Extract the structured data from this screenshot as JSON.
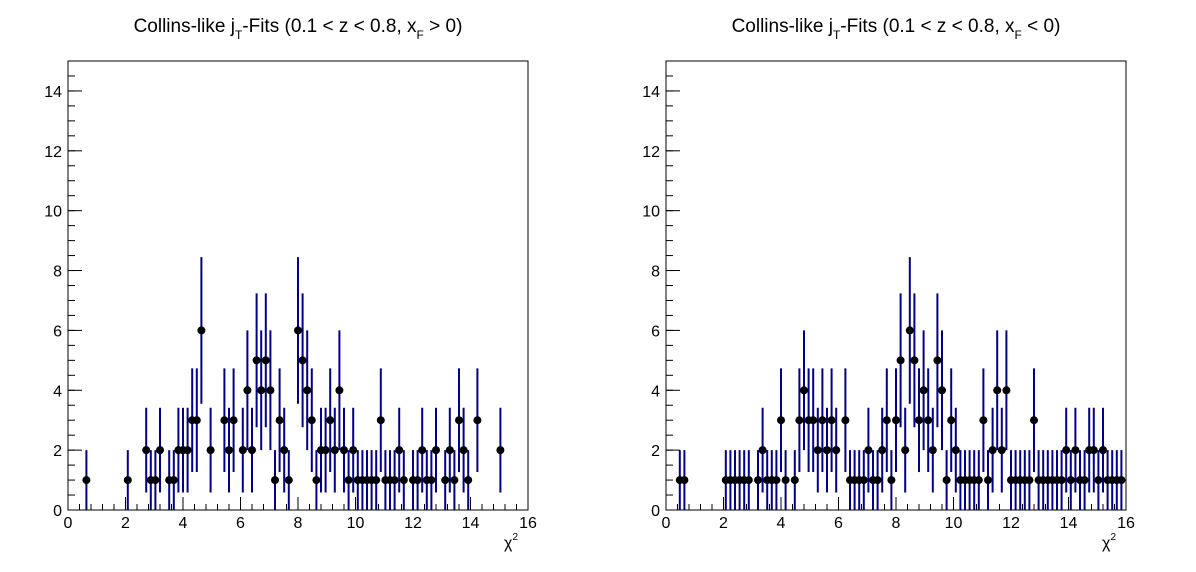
{
  "chart_data": [
    {
      "type": "scatter",
      "title_prefix": "Collins-like j",
      "title_sub1": "T",
      "title_mid": "-Fits (0.1 < z < 0.8, x",
      "title_sub2": "F",
      "title_suffix": " > 0)",
      "xlabel_base": "χ",
      "xlabel_sup": "2",
      "xlim": [
        0,
        16
      ],
      "ylim": [
        0,
        15
      ],
      "xticks": [
        0,
        2,
        4,
        6,
        8,
        10,
        12,
        14,
        16
      ],
      "yticks": [
        0,
        2,
        4,
        6,
        8,
        10,
        12,
        14
      ],
      "error_bars": "sqrt(N)",
      "x": [
        0.64,
        2.08,
        2.72,
        2.88,
        3.04,
        3.2,
        3.52,
        3.68,
        3.84,
        4.0,
        4.16,
        4.32,
        4.48,
        4.64,
        4.96,
        5.44,
        5.6,
        5.76,
        6.08,
        6.24,
        6.4,
        6.56,
        6.72,
        6.88,
        7.04,
        7.2,
        7.36,
        7.52,
        7.68,
        8.0,
        8.16,
        8.32,
        8.48,
        8.64,
        8.8,
        8.96,
        9.12,
        9.28,
        9.44,
        9.6,
        9.76,
        9.92,
        10.08,
        10.24,
        10.4,
        10.56,
        10.72,
        10.88,
        11.04,
        11.2,
        11.36,
        11.52,
        11.68,
        12.0,
        12.16,
        12.32,
        12.48,
        12.64,
        12.8,
        13.12,
        13.28,
        13.44,
        13.6,
        13.76,
        13.92,
        14.24,
        15.04
      ],
      "y": [
        1,
        1,
        2,
        1,
        1,
        2,
        1,
        1,
        2,
        2,
        2,
        3,
        3,
        6,
        2,
        3,
        2,
        3,
        2,
        4,
        2,
        5,
        4,
        5,
        4,
        1,
        3,
        2,
        1,
        6,
        5,
        4,
        3,
        1,
        2,
        2,
        3,
        2,
        4,
        2,
        1,
        2,
        1,
        1,
        1,
        1,
        1,
        3,
        1,
        1,
        1,
        2,
        1,
        1,
        1,
        2,
        1,
        1,
        2,
        1,
        2,
        1,
        3,
        2,
        1,
        3,
        2
      ]
    },
    {
      "type": "scatter",
      "title_prefix": "Collins-like j",
      "title_sub1": "T",
      "title_mid": "-Fits (0.1 < z < 0.8, x",
      "title_sub2": "F",
      "title_suffix": " < 0)",
      "xlabel_base": "χ",
      "xlabel_sup": "2",
      "xlim": [
        0,
        16
      ],
      "ylim": [
        0,
        15
      ],
      "xticks": [
        0,
        2,
        4,
        6,
        8,
        10,
        12,
        14,
        16
      ],
      "yticks": [
        0,
        2,
        4,
        6,
        8,
        10,
        12,
        14
      ],
      "error_bars": "sqrt(N)",
      "x": [
        0.48,
        0.64,
        2.08,
        2.24,
        2.4,
        2.56,
        2.72,
        2.88,
        3.2,
        3.36,
        3.52,
        3.68,
        3.84,
        4.0,
        4.16,
        4.48,
        4.64,
        4.8,
        4.96,
        5.12,
        5.28,
        5.44,
        5.6,
        5.76,
        5.92,
        6.24,
        6.4,
        6.56,
        6.72,
        6.88,
        7.04,
        7.2,
        7.36,
        7.52,
        7.68,
        7.84,
        8.0,
        8.16,
        8.32,
        8.48,
        8.64,
        8.8,
        8.96,
        9.12,
        9.28,
        9.44,
        9.6,
        9.76,
        9.92,
        10.08,
        10.24,
        10.4,
        10.56,
        10.72,
        10.88,
        11.04,
        11.2,
        11.36,
        11.52,
        11.68,
        11.84,
        12.0,
        12.16,
        12.32,
        12.48,
        12.64,
        12.8,
        12.96,
        13.12,
        13.28,
        13.44,
        13.6,
        13.76,
        13.92,
        14.08,
        14.24,
        14.4,
        14.56,
        14.72,
        14.88,
        15.04,
        15.2,
        15.36,
        15.52,
        15.68,
        15.84
      ],
      "y": [
        1,
        1,
        1,
        1,
        1,
        1,
        1,
        1,
        1,
        2,
        1,
        1,
        1,
        3,
        1,
        1,
        3,
        4,
        3,
        3,
        2,
        3,
        2,
        3,
        2,
        3,
        1,
        1,
        1,
        1,
        2,
        1,
        1,
        2,
        3,
        1,
        3,
        5,
        2,
        6,
        5,
        3,
        4,
        3,
        2,
        5,
        4,
        1,
        3,
        2,
        1,
        1,
        1,
        1,
        1,
        3,
        1,
        2,
        4,
        2,
        4,
        1,
        1,
        1,
        1,
        1,
        3,
        1,
        1,
        1,
        1,
        1,
        1,
        2,
        1,
        2,
        1,
        1,
        2,
        2,
        1,
        2,
        1,
        1,
        1,
        1
      ]
    }
  ]
}
